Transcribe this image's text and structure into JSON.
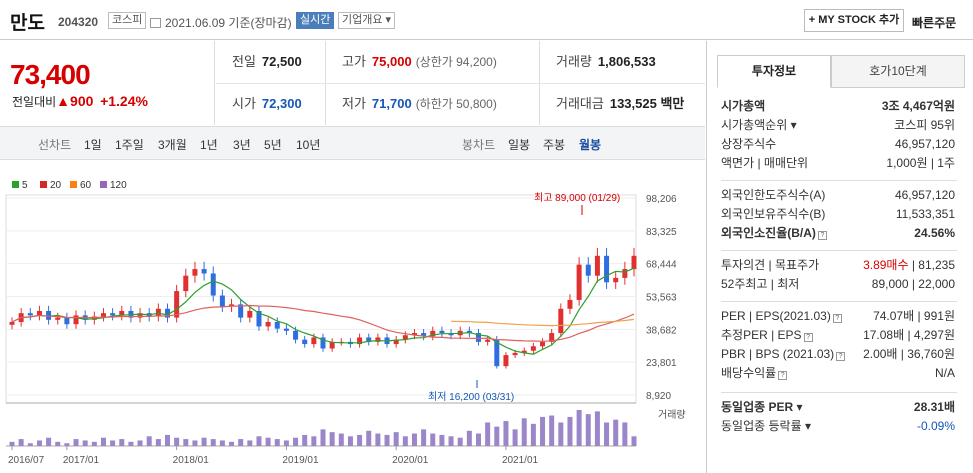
{
  "stock": {
    "name": "만도",
    "code": "204320",
    "market": "코스피",
    "date": "2021.06.09",
    "date_suffix": "기준(장마감)",
    "realtime": "실시간",
    "company_overview": "기업개요",
    "mystock_button": "+ MY STOCK 추가",
    "quick_order": "빠른주문"
  },
  "price": {
    "current": "73,400",
    "change_label": "전일대비",
    "change_amount": "900",
    "change_rate": "+1.24%"
  },
  "summary": {
    "prev_label": "전일",
    "prev": "72,500",
    "high_label": "고가",
    "high": "75,000",
    "high_limit": "(상한가 94,200)",
    "volume_label": "거래량",
    "volume": "1,806,533",
    "open_label": "시가",
    "open": "72,300",
    "low_label": "저가",
    "low": "71,700",
    "low_limit": "(하한가 50,800)",
    "amount_label": "거래대금",
    "amount": "133,525 백만"
  },
  "controls": {
    "line_label": "선차트",
    "periods": [
      "1일",
      "1주일",
      "3개월",
      "1년",
      "3년",
      "5년",
      "10년"
    ],
    "candle_label": "봉차트",
    "candles": [
      "일봉",
      "주봉",
      "월봉"
    ],
    "selected_candle": "월봉"
  },
  "legend": [
    {
      "label": "5",
      "color": "#2ca02c"
    },
    {
      "label": "20",
      "color": "#d62728"
    },
    {
      "label": "60",
      "color": "#ff7f0e"
    },
    {
      "label": "120",
      "color": "#9467bd"
    }
  ],
  "chart_data": {
    "type": "candlestick",
    "period": "월봉",
    "y_ticks": [
      "98,206",
      "83,325",
      "68,444",
      "53,563",
      "38,682",
      "23,801",
      "8,920"
    ],
    "x_ticks": [
      "2016/07",
      "2017/01",
      "2018/01",
      "2019/01",
      "2020/01",
      "2021/01"
    ],
    "high_annotation": "최고 89,000 (01/29)",
    "low_annotation": "최저 16,200 (03/31)",
    "volume_label": "거래량",
    "closes": [
      42000,
      46000,
      45000,
      47000,
      43000,
      44000,
      41000,
      45000,
      43000,
      44500,
      46000,
      45000,
      47000,
      44000,
      46000,
      44500,
      48000,
      44000,
      56000,
      63000,
      66000,
      64000,
      54000,
      49000,
      50000,
      44000,
      47000,
      40000,
      42000,
      39000,
      38000,
      34000,
      32000,
      35000,
      30000,
      33000,
      33000,
      32000,
      35000,
      33000,
      35000,
      32000,
      34000,
      36000,
      37000,
      35500,
      38000,
      37000,
      36000,
      38000,
      37000,
      33000,
      34000,
      22000,
      27000,
      28000,
      29000,
      31000,
      33000,
      37000,
      48000,
      52000,
      68000,
      63000,
      72000,
      60000,
      62000,
      66000,
      72000
    ],
    "volumes": [
      3,
      5,
      2,
      4,
      6,
      3,
      2,
      5,
      4,
      3,
      6,
      4,
      5,
      3,
      4,
      7,
      5,
      8,
      6,
      5,
      4,
      6,
      5,
      4,
      3,
      5,
      4,
      7,
      6,
      5,
      4,
      6,
      8,
      7,
      12,
      10,
      9,
      7,
      8,
      11,
      9,
      8,
      10,
      7,
      9,
      12,
      9,
      8,
      7,
      6,
      11,
      9,
      17,
      14,
      18,
      12,
      20,
      16,
      21,
      22,
      17,
      21,
      26,
      23,
      25,
      17,
      19,
      17,
      7
    ]
  },
  "invest_info": {
    "tab_invest": "투자정보",
    "tab_orderbook": "호가10단계",
    "rows1": [
      {
        "label": "시가총액",
        "value": "3조 4,467억원",
        "bold": true
      },
      {
        "label": "시가총액순위",
        "value": "코스피 95위"
      },
      {
        "label": "상장주식수",
        "value": "46,957,120"
      },
      {
        "label": "액면가 | 매매단위",
        "value": "1,000원 | 1주"
      }
    ],
    "rows2": [
      {
        "label": "외국인한도주식수(A)",
        "value": "46,957,120"
      },
      {
        "label": "외국인보유주식수(B)",
        "value": "11,533,351"
      },
      {
        "label": "외국인소진율(B/A)",
        "value": "24.56%",
        "bold": true
      }
    ],
    "opinion_label": "투자의견 | 목표주가",
    "opinion_value": "3.89매수",
    "target_price": "81,235",
    "week52_label": "52주최고 | 최저",
    "week52_value": "89,000 | 22,000",
    "per_rows": [
      {
        "label": "PER | EPS(2021.03)",
        "value": "74.07배 | 991원"
      },
      {
        "label": "추정PER | EPS",
        "value": "17.08배 | 4,297원"
      },
      {
        "label": "PBR | BPS (2021.03)",
        "value": "2.00배 | 36,760원"
      },
      {
        "label": "배당수익률",
        "value": "N/A"
      }
    ],
    "industry_per_label": "동일업종 PER",
    "industry_per_value": "28.31배",
    "industry_rate_label": "동일업종 등락률",
    "industry_rate_value": "-0.09%"
  }
}
